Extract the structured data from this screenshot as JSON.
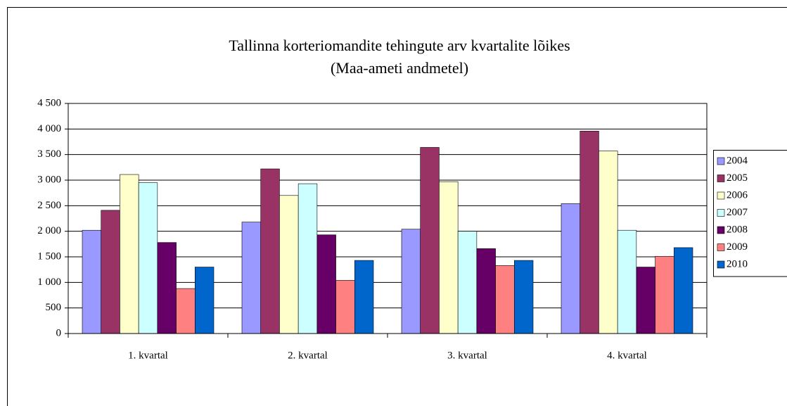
{
  "chart_data": {
    "type": "bar",
    "title": "Tallinna korteriomandite tehingute arv kvartalite lõikes",
    "subtitle": "(Maa-ameti andmetel)",
    "categories": [
      "1. kvartal",
      "2. kvartal",
      "3. kvartal",
      "4. kvartal"
    ],
    "series": [
      {
        "name": "2004",
        "color": "#9999ff",
        "values": [
          2020,
          2180,
          2040,
          2540
        ]
      },
      {
        "name": "2005",
        "color": "#993366",
        "values": [
          2410,
          3220,
          3640,
          3960
        ]
      },
      {
        "name": "2006",
        "color": "#ffffcc",
        "values": [
          3110,
          2700,
          2970,
          3570
        ]
      },
      {
        "name": "2007",
        "color": "#ccffff",
        "values": [
          2950,
          2930,
          2000,
          2020
        ]
      },
      {
        "name": "2008",
        "color": "#660066",
        "values": [
          1780,
          1930,
          1660,
          1300
        ]
      },
      {
        "name": "2009",
        "color": "#ff8080",
        "values": [
          880,
          1040,
          1330,
          1510
        ]
      },
      {
        "name": "2010",
        "color": "#0066cc",
        "values": [
          1300,
          1430,
          1430,
          1680
        ]
      }
    ],
    "ylim": [
      0,
      4500
    ],
    "yticks": [
      0,
      500,
      {
        "value": 1000,
        "label": "1 000"
      },
      {
        "value": 1500,
        "label": "1 500"
      },
      {
        "value": 2000,
        "label": "2 000"
      },
      {
        "value": 2500,
        "label": "2 500"
      },
      {
        "value": 3000,
        "label": "3 000"
      },
      {
        "value": 3500,
        "label": "3 500"
      },
      {
        "value": 4000,
        "label": "4 000"
      },
      {
        "value": 4500,
        "label": "4 500"
      }
    ],
    "grid": true,
    "legend": "right"
  }
}
